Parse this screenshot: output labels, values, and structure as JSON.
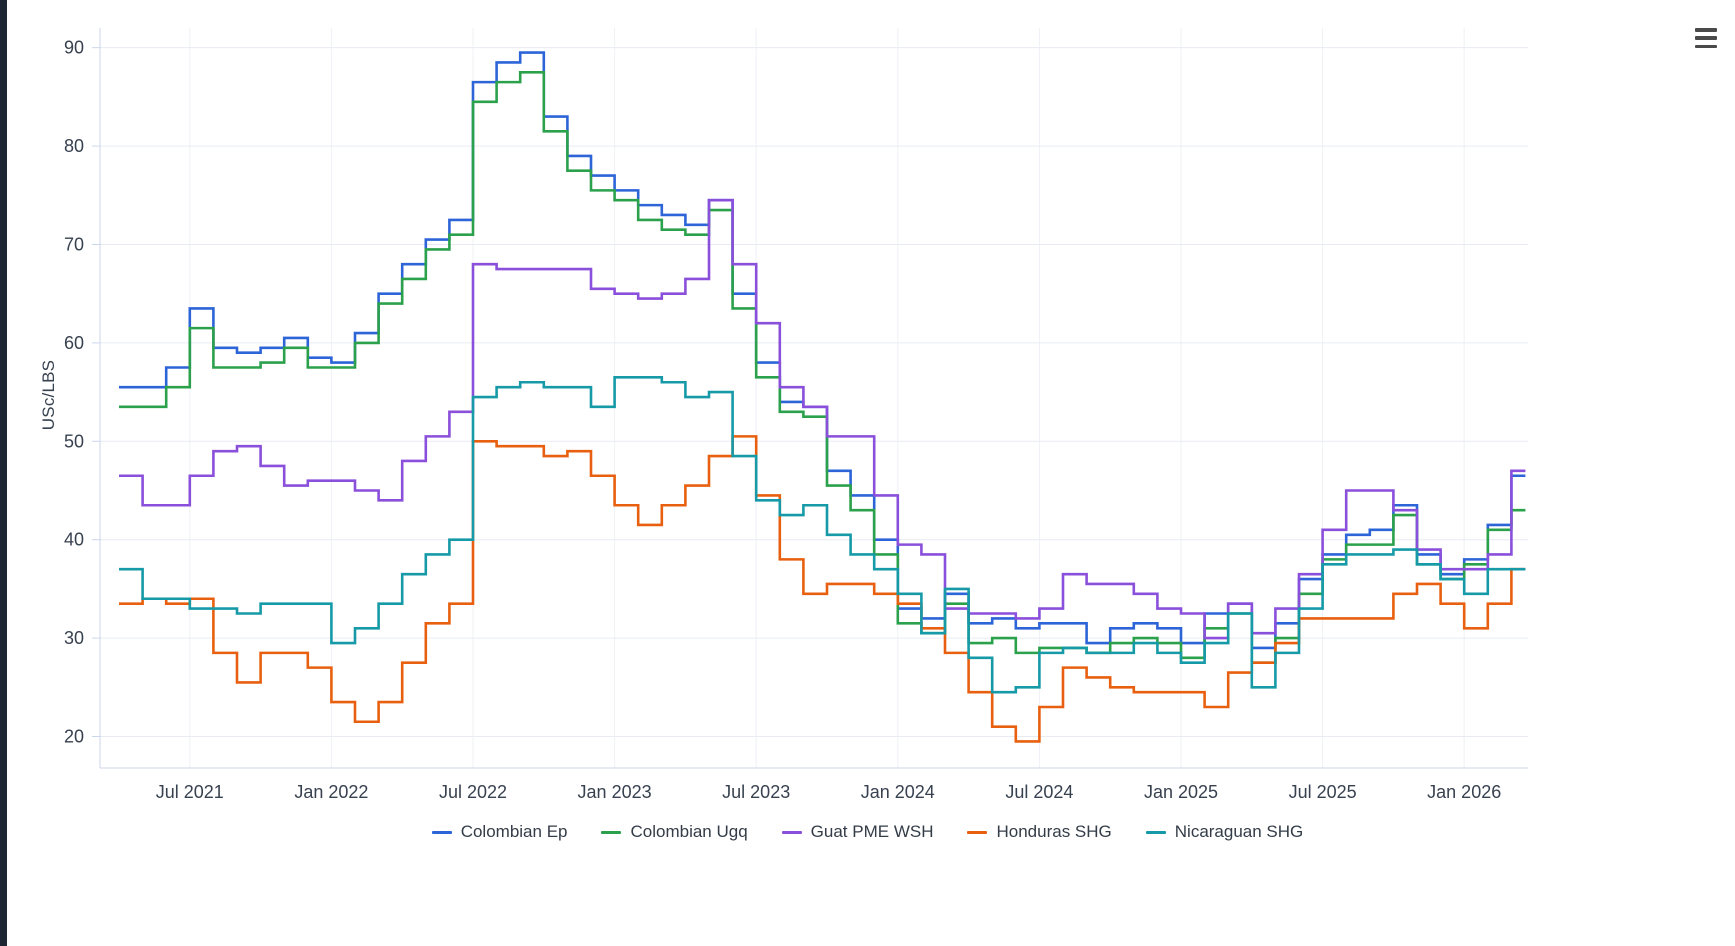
{
  "page": {
    "background": "#ffffff",
    "edge_color": "#1d2633"
  },
  "toolbar": {
    "menu_icon": "hamburger-menu"
  },
  "axis_style": {
    "axis_color": "#ccd6eb",
    "grid_color": "#e8ecf2",
    "vgrid_color": "#eef1f6",
    "label_color": "#37414f"
  },
  "chart_data": {
    "type": "line",
    "step": true,
    "title": "",
    "xlabel": "",
    "ylabel": "USc/LBS",
    "ylim": [
      16.8,
      92
    ],
    "y_ticks": [
      20,
      30,
      40,
      50,
      60,
      70,
      80,
      90
    ],
    "x_interval": "month",
    "x_start": "2021-04",
    "x_points": 60,
    "x_tick_labels": [
      "Jul 2021",
      "Jan 2022",
      "Jul 2022",
      "Jan 2023",
      "Jul 2023",
      "Jan 2024",
      "Jul 2024",
      "Jan 2025",
      "Jul 2025",
      "Jan 2026"
    ],
    "x_tick_indices": [
      3,
      9,
      15,
      21,
      27,
      33,
      39,
      45,
      51,
      57
    ],
    "grid": true,
    "legend_position": "bottom",
    "series": [
      {
        "name": "Colombian Ep",
        "color": "#2d64d8",
        "values": [
          55.5,
          55.5,
          57.5,
          63.5,
          59.5,
          59,
          59.5,
          60.5,
          58.5,
          58,
          61,
          65,
          68,
          70.5,
          72.5,
          86.5,
          88.5,
          89.5,
          83,
          79,
          77,
          75.5,
          74,
          73,
          72,
          74.5,
          65,
          58,
          54,
          53.5,
          47,
          44.5,
          40,
          33,
          32,
          34.5,
          31.5,
          32,
          31,
          31.5,
          31.5,
          29.5,
          31,
          31.5,
          31,
          29.5,
          32.5,
          33.5,
          29,
          31.5,
          36,
          38.5,
          40.5,
          41,
          43.5,
          38.5,
          36.5,
          38,
          41.5,
          46.5
        ]
      },
      {
        "name": "Colombian Ugq",
        "color": "#2ba14c",
        "values": [
          53.5,
          53.5,
          55.5,
          61.5,
          57.5,
          57.5,
          58,
          59.5,
          57.5,
          57.5,
          60,
          64,
          66.5,
          69.5,
          71,
          84.5,
          86.5,
          87.5,
          81.5,
          77.5,
          75.5,
          74.5,
          72.5,
          71.5,
          71,
          73.5,
          63.5,
          56.5,
          53,
          52.5,
          45.5,
          43,
          38.5,
          31.5,
          30.5,
          33.5,
          29.5,
          30,
          28.5,
          29,
          29,
          28.5,
          29.5,
          30,
          29.5,
          28,
          31,
          32.5,
          27.5,
          30,
          34.5,
          38,
          39.5,
          39.5,
          42.5,
          37.5,
          36,
          37.5,
          41,
          43
        ]
      },
      {
        "name": "Guat PME WSH",
        "color": "#8a4fdb",
        "values": [
          46.5,
          43.5,
          43.5,
          46.5,
          49,
          49.5,
          47.5,
          45.5,
          46,
          46,
          45,
          44,
          48,
          50.5,
          53,
          68,
          67.5,
          67.5,
          67.5,
          67.5,
          65.5,
          65,
          64.5,
          65,
          66.5,
          74.5,
          68,
          62,
          55.5,
          53.5,
          50.5,
          50.5,
          44.5,
          39.5,
          38.5,
          33,
          32.5,
          32.5,
          32,
          33,
          36.5,
          35.5,
          35.5,
          34.5,
          33,
          32.5,
          30,
          33.5,
          30.5,
          33,
          36.5,
          41,
          45,
          45,
          43,
          39,
          37,
          37,
          38.5,
          47
        ]
      },
      {
        "name": "Honduras SHG",
        "color": "#e8600f",
        "values": [
          33.5,
          34,
          33.5,
          34,
          28.5,
          25.5,
          28.5,
          28.5,
          27,
          23.5,
          21.5,
          23.5,
          27.5,
          31.5,
          33.5,
          50,
          49.5,
          49.5,
          48.5,
          49,
          46.5,
          43.5,
          41.5,
          43.5,
          45.5,
          48.5,
          50.5,
          44.5,
          38,
          34.5,
          35.5,
          35.5,
          34.5,
          33.5,
          31,
          28.5,
          24.5,
          21,
          19.5,
          23,
          27,
          26,
          25,
          24.5,
          24.5,
          24.5,
          23,
          26.5,
          27.5,
          29.5,
          32,
          32,
          32,
          32,
          34.5,
          35.5,
          33.5,
          31,
          33.5,
          37
        ]
      },
      {
        "name": "Nicaraguan SHG",
        "color": "#169aa8",
        "values": [
          37,
          34,
          34,
          33,
          33,
          32.5,
          33.5,
          33.5,
          33.5,
          29.5,
          31,
          33.5,
          36.5,
          38.5,
          40,
          54.5,
          55.5,
          56,
          55.5,
          55.5,
          53.5,
          56.5,
          56.5,
          56,
          54.5,
          55,
          48.5,
          44,
          42.5,
          43.5,
          40.5,
          38.5,
          37,
          34.5,
          30.5,
          35,
          28,
          24.5,
          25,
          28.5,
          29,
          28.5,
          28.5,
          29.5,
          28.5,
          27.5,
          29.5,
          32.5,
          25,
          28.5,
          33,
          37.5,
          38.5,
          38.5,
          39,
          37.5,
          36,
          34.5,
          37,
          37
        ]
      }
    ]
  }
}
